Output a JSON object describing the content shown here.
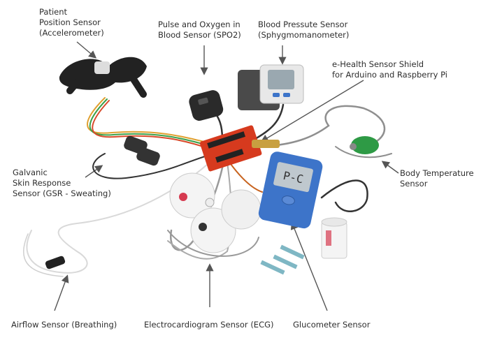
{
  "labels": {
    "patient_position": "Patient\nPosition Sensor\n(Accelerometer)",
    "pulse_oxygen": "Pulse and Oxygen in\nBlood Sensor (SPO2)",
    "blood_pressure": "Blood Pressute Sensor\n(Sphygmomanometer)",
    "shield": "e-Health Sensor Shield\nfor Arduino and Raspberry Pi",
    "gsr": "Galvanic\nSkin Response\nSensor (GSR - Sweating)",
    "body_temperature": "Body Temperature\nSensor",
    "airflow": "Airflow Sensor (Breathing)",
    "ecg": "Electrocardiogram Sensor (ECG)",
    "glucometer": "Glucometer Sensor"
  },
  "device_text": {
    "glucometer_display": "P-C"
  },
  "colors": {
    "background": "#ffffff",
    "text": "#2e2e2e",
    "arrow": "#555555",
    "board_red": "#d63a1e",
    "glucometer_blue": "#3d74c9",
    "temp_probe_green": "#2e9a45",
    "cable_gray": "#8f8f8f",
    "strap_black": "#222222"
  }
}
